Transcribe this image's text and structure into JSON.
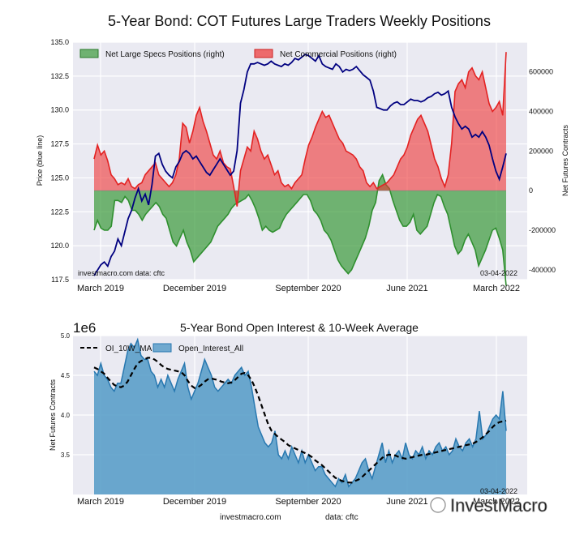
{
  "chart_data": [
    {
      "type": "area",
      "title": "5-Year Bond: COT Futures Large Traders Weekly Positions",
      "ylabel_left": "Price (blue line)",
      "ylabel_right": "Net Futures Contracts",
      "ylim_left": [
        117.5,
        135.0
      ],
      "ylim_right": [
        -450000,
        750000
      ],
      "left_ticks": [
        "117.5",
        "120.0",
        "122.5",
        "125.0",
        "127.5",
        "130.0",
        "132.5",
        "135.0"
      ],
      "right_ticks": [
        "-400000",
        "-200000",
        "0",
        "200000",
        "400000",
        "600000"
      ],
      "x_ticks": [
        "March 2019",
        "December 2019",
        "September 2020",
        "June 2021",
        "March 2022"
      ],
      "date_range": [
        "2019-03-05",
        "2022-03-04"
      ],
      "legend": {
        "specs": "Net Large Specs Positions (right)",
        "commercial": "Net Commercial Positions (right)",
        "position": "top-left"
      },
      "colors": {
        "specs": "#3a9a3a",
        "commercial": "#ee3333",
        "price": "#000080",
        "background": "#eaeaf2"
      },
      "watermark": "investmacro.com   data: cftc",
      "date_label": "03-04-2022",
      "series": [
        {
          "name": "Net Large Specs Positions (right)",
          "values": [
            -200000,
            -150000,
            -190000,
            -200000,
            -200000,
            -180000,
            -50000,
            -50000,
            -60000,
            -30000,
            -50000,
            -100000,
            -100000,
            -120000,
            -150000,
            -120000,
            -100000,
            -80000,
            -60000,
            -80000,
            -120000,
            -140000,
            -200000,
            -260000,
            -280000,
            -240000,
            -200000,
            -260000,
            -300000,
            -360000,
            -340000,
            -320000,
            -300000,
            -280000,
            -260000,
            -220000,
            -180000,
            -160000,
            -140000,
            -120000,
            -90000,
            -70000,
            -60000,
            -50000,
            -40000,
            -20000,
            -50000,
            -90000,
            -140000,
            -200000,
            -180000,
            -200000,
            -210000,
            -200000,
            -190000,
            -150000,
            -120000,
            -100000,
            -80000,
            -60000,
            -40000,
            -20000,
            -20000,
            -50000,
            -100000,
            -120000,
            -150000,
            -200000,
            -220000,
            -250000,
            -300000,
            -350000,
            -380000,
            -400000,
            -420000,
            -400000,
            -360000,
            -320000,
            -280000,
            -240000,
            -180000,
            -100000,
            -60000,
            50000,
            80000,
            30000,
            10000,
            -50000,
            -100000,
            -150000,
            -180000,
            -180000,
            -160000,
            -120000,
            -200000,
            -220000,
            -200000,
            -180000,
            -120000,
            -60000,
            -20000,
            -30000,
            -80000,
            -120000,
            -200000,
            -280000,
            -320000,
            -300000,
            -250000,
            -220000,
            -260000,
            -300000,
            -380000,
            -340000,
            -300000,
            -250000,
            -200000,
            -190000,
            -240000,
            -300000,
            -480000
          ]
        },
        {
          "name": "Net Commercial Positions (right)",
          "values": [
            160000,
            230000,
            180000,
            200000,
            150000,
            80000,
            60000,
            30000,
            40000,
            30000,
            60000,
            20000,
            10000,
            30000,
            40000,
            80000,
            100000,
            120000,
            140000,
            80000,
            60000,
            40000,
            20000,
            40000,
            80000,
            160000,
            340000,
            320000,
            240000,
            300000,
            380000,
            420000,
            350000,
            300000,
            240000,
            180000,
            160000,
            200000,
            140000,
            120000,
            110000,
            20000,
            -80000,
            100000,
            160000,
            220000,
            200000,
            300000,
            260000,
            200000,
            160000,
            180000,
            130000,
            80000,
            100000,
            40000,
            20000,
            30000,
            10000,
            40000,
            60000,
            80000,
            160000,
            230000,
            270000,
            320000,
            360000,
            400000,
            370000,
            380000,
            340000,
            300000,
            260000,
            240000,
            200000,
            190000,
            180000,
            160000,
            120000,
            100000,
            40000,
            20000,
            40000,
            10000,
            20000,
            30000,
            40000,
            60000,
            80000,
            120000,
            160000,
            180000,
            220000,
            280000,
            320000,
            360000,
            380000,
            340000,
            300000,
            230000,
            160000,
            120000,
            60000,
            20000,
            80000,
            240000,
            500000,
            540000,
            560000,
            520000,
            600000,
            620000,
            580000,
            560000,
            600000,
            520000,
            440000,
            400000,
            420000,
            450000,
            380000,
            700000
          ]
        },
        {
          "name": "Price (blue line)",
          "values": [
            117.8,
            118.2,
            118.6,
            118.8,
            118.5,
            119.2,
            119.6,
            120.5,
            120.0,
            121.0,
            122.0,
            122.6,
            123.5,
            124.2,
            123.3,
            123.8,
            123.0,
            124.5,
            126.6,
            126.8,
            126.0,
            125.5,
            125.2,
            125.0,
            125.8,
            126.2,
            126.8,
            127.0,
            126.8,
            126.4,
            126.6,
            126.2,
            125.8,
            125.4,
            125.2,
            125.6,
            126.0,
            126.4,
            126.0,
            125.6,
            125.2,
            125.5,
            127.0,
            130.5,
            131.5,
            132.8,
            133.4,
            133.4,
            133.5,
            133.4,
            133.3,
            133.4,
            133.6,
            133.4,
            133.3,
            133.2,
            133.4,
            133.3,
            133.5,
            133.8,
            133.7,
            133.9,
            134.1,
            134.0,
            133.8,
            133.6,
            134.0,
            133.4,
            133.2,
            133.1,
            133.0,
            133.4,
            133.2,
            132.8,
            133.0,
            132.9,
            133.0,
            133.2,
            132.9,
            132.6,
            132.4,
            132.2,
            131.4,
            130.2,
            130.1,
            130.0,
            130.0,
            130.3,
            130.5,
            130.6,
            130.4,
            130.4,
            130.6,
            130.8,
            130.7,
            130.7,
            130.6,
            130.7,
            130.9,
            131.0,
            131.2,
            131.3,
            131.1,
            131.2,
            131.4,
            130.2,
            129.5,
            129.0,
            128.6,
            128.8,
            128.6,
            128.0,
            128.2,
            128.0,
            128.4,
            128.0,
            127.4,
            126.4,
            125.5,
            124.9,
            125.8,
            126.8
          ]
        }
      ]
    },
    {
      "type": "area",
      "title": "5-Year Bond Open Interest & 10-Week Average",
      "ylabel": "Net Futures Contracts",
      "scale_label": "1e6",
      "ylim": [
        3.0,
        5.0
      ],
      "y_ticks": [
        "3.5",
        "4.0",
        "4.5",
        "5.0"
      ],
      "x_ticks": [
        "March 2019",
        "December 2019",
        "September 2020",
        "June 2021",
        "March 2022"
      ],
      "date_range": [
        "2019-03-05",
        "2022-03-04"
      ],
      "legend": {
        "ma": "OI_10W_MA",
        "oi": "Open_Interest_All",
        "position": "top-left"
      },
      "colors": {
        "oi": "#5b9ec9",
        "oi_line": "#2878b0",
        "ma": "#000000",
        "background": "#eaeaf2"
      },
      "date_label": "03-04-2022",
      "series": [
        {
          "name": "Open_Interest_All",
          "values": [
            4.55,
            4.5,
            4.65,
            4.5,
            4.45,
            4.35,
            4.3,
            4.4,
            4.4,
            4.6,
            4.8,
            4.9,
            4.85,
            4.95,
            4.75,
            4.7,
            4.7,
            4.55,
            4.5,
            4.35,
            4.45,
            4.35,
            4.5,
            4.4,
            4.3,
            4.45,
            4.55,
            4.65,
            4.35,
            4.2,
            4.3,
            4.4,
            4.55,
            4.7,
            4.6,
            4.5,
            4.35,
            4.3,
            4.35,
            4.4,
            4.45,
            4.4,
            4.5,
            4.55,
            4.6,
            4.5,
            4.55,
            4.35,
            4.1,
            3.85,
            3.75,
            3.65,
            3.6,
            3.65,
            3.8,
            3.5,
            3.45,
            3.55,
            3.45,
            3.6,
            3.5,
            3.4,
            3.55,
            3.4,
            3.5,
            3.4,
            3.3,
            3.35,
            3.35,
            3.25,
            3.2,
            3.15,
            3.1,
            3.2,
            3.15,
            3.25,
            3.1,
            3.15,
            3.2,
            3.3,
            3.4,
            3.45,
            3.3,
            3.2,
            3.35,
            3.5,
            3.65,
            3.4,
            3.55,
            3.4,
            3.5,
            3.55,
            3.45,
            3.65,
            3.5,
            3.45,
            3.55,
            3.5,
            3.6,
            3.45,
            3.55,
            3.5,
            3.6,
            3.65,
            3.55,
            3.6,
            3.5,
            3.55,
            3.7,
            3.6,
            3.55,
            3.65,
            3.7,
            3.6,
            3.7,
            4.05,
            3.7,
            3.75,
            3.85,
            3.95,
            4.0,
            3.95,
            4.3,
            3.8
          ]
        },
        {
          "name": "OI_10W_MA",
          "values": [
            4.6,
            4.58,
            4.55,
            4.52,
            4.47,
            4.42,
            4.38,
            4.36,
            4.35,
            4.37,
            4.42,
            4.5,
            4.58,
            4.65,
            4.68,
            4.7,
            4.72,
            4.72,
            4.7,
            4.67,
            4.63,
            4.6,
            4.58,
            4.57,
            4.56,
            4.55,
            4.54,
            4.5,
            4.43,
            4.37,
            4.34,
            4.35,
            4.38,
            4.42,
            4.45,
            4.46,
            4.45,
            4.44,
            4.42,
            4.41,
            4.4,
            4.41,
            4.44,
            4.48,
            4.52,
            4.53,
            4.5,
            4.44,
            4.35,
            4.24,
            4.12,
            4.0,
            3.88,
            3.8,
            3.76,
            3.72,
            3.69,
            3.66,
            3.62,
            3.6,
            3.58,
            3.56,
            3.54,
            3.52,
            3.5,
            3.47,
            3.43,
            3.4,
            3.37,
            3.33,
            3.29,
            3.25,
            3.21,
            3.19,
            3.17,
            3.16,
            3.15,
            3.15,
            3.17,
            3.19,
            3.22,
            3.26,
            3.3,
            3.34,
            3.38,
            3.42,
            3.46,
            3.49,
            3.5,
            3.5,
            3.49,
            3.47,
            3.46,
            3.45,
            3.46,
            3.47,
            3.48,
            3.49,
            3.5,
            3.5,
            3.51,
            3.52,
            3.53,
            3.54,
            3.55,
            3.56,
            3.57,
            3.58,
            3.59,
            3.6,
            3.61,
            3.62,
            3.63,
            3.64,
            3.66,
            3.69,
            3.72,
            3.76,
            3.8,
            3.85,
            3.89,
            3.91,
            3.92,
            3.93
          ]
        }
      ]
    }
  ],
  "footer": {
    "left": "investmacro.com",
    "right": "data: cftc"
  },
  "brand_watermark": "InvestMacro"
}
